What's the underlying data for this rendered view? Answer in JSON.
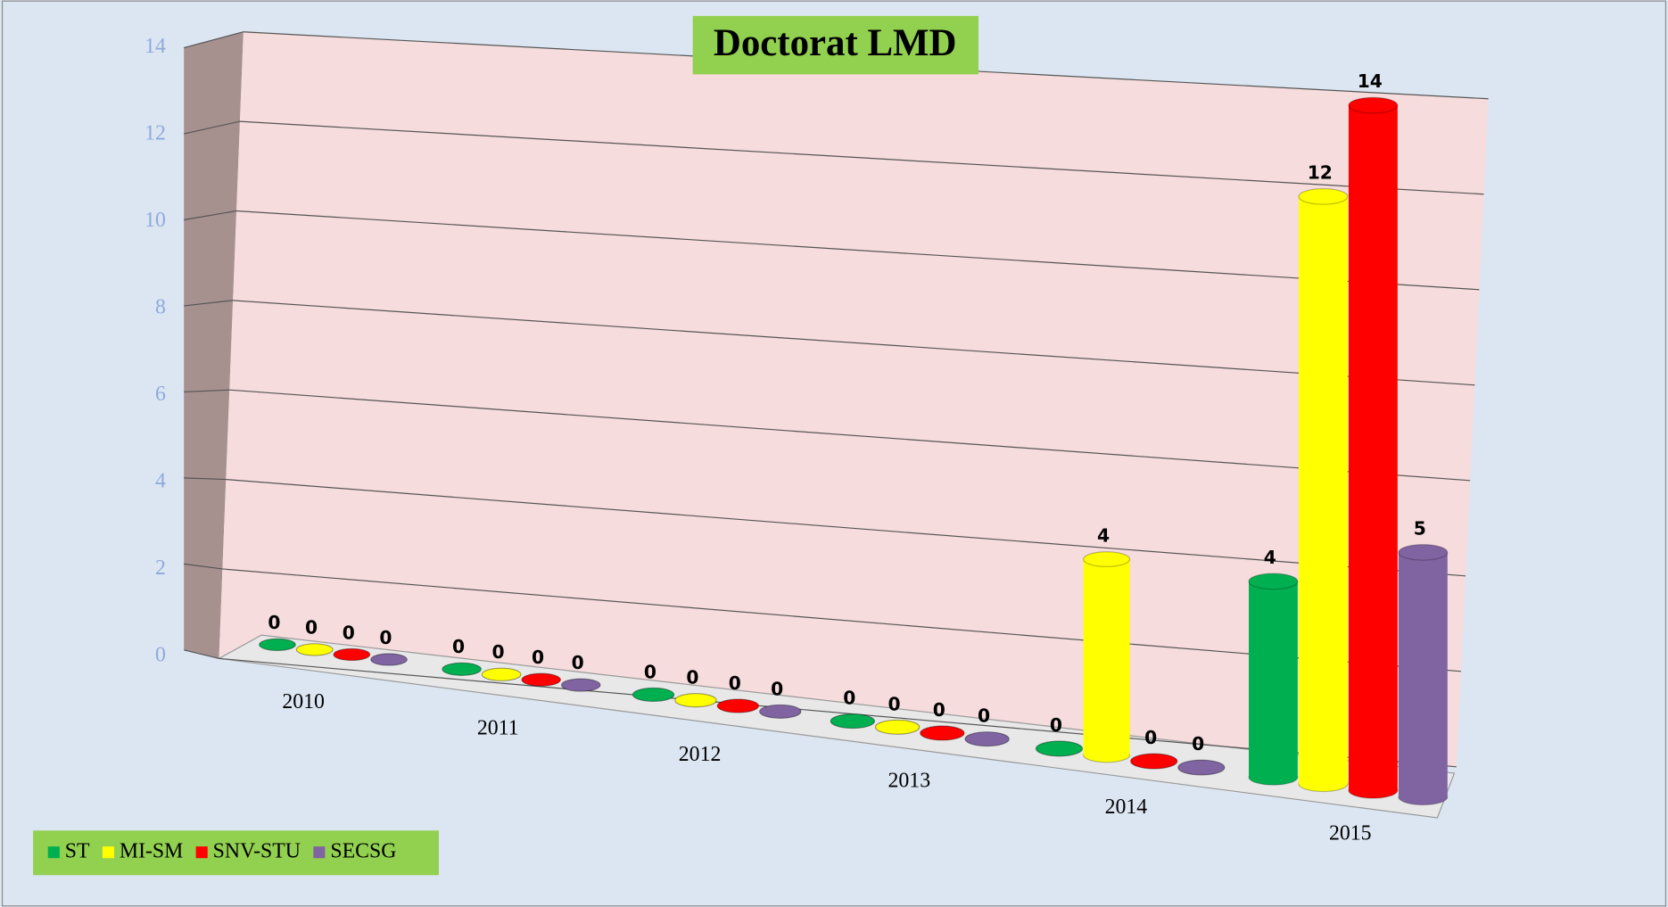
{
  "chart_data": {
    "type": "bar3d",
    "title": "Doctorat LMD",
    "categories": [
      "2010",
      "2011",
      "2012",
      "2013",
      "2014",
      "2015"
    ],
    "series": [
      {
        "name": "ST",
        "color": "#00b050",
        "values": [
          0,
          0,
          0,
          0,
          0,
          4
        ]
      },
      {
        "name": "MI-SM",
        "color": "#ffff00",
        "values": [
          0,
          0,
          0,
          0,
          4,
          12
        ]
      },
      {
        "name": "SNV-STU",
        "color": "#ff0000",
        "values": [
          0,
          0,
          0,
          0,
          0,
          14
        ]
      },
      {
        "name": "SECSG",
        "color": "#8064a2",
        "values": [
          0,
          0,
          0,
          0,
          0,
          5
        ]
      }
    ],
    "ylim": [
      0,
      14
    ],
    "yticks": [
      0,
      2,
      4,
      6,
      8,
      10,
      12,
      14
    ],
    "grid": true,
    "legend": "bottom-left"
  }
}
